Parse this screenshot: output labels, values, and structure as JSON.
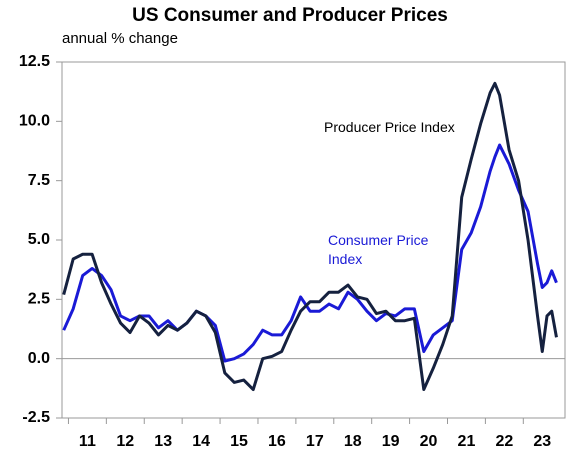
{
  "chart_data": {
    "type": "line",
    "title": "US Consumer and Producer Prices",
    "subtitle": "annual % change",
    "x": [
      10.875,
      11.125,
      11.375,
      11.625,
      11.875,
      12.125,
      12.375,
      12.625,
      12.875,
      13.125,
      13.375,
      13.625,
      13.875,
      14.125,
      14.375,
      14.625,
      14.875,
      15.125,
      15.375,
      15.625,
      15.875,
      16.125,
      16.375,
      16.625,
      16.875,
      17.125,
      17.375,
      17.625,
      17.875,
      18.125,
      18.375,
      18.625,
      18.875,
      19.125,
      19.375,
      19.625,
      19.875,
      20.125,
      20.375,
      20.625,
      20.875,
      21.125,
      21.375,
      21.625,
      21.875,
      22.125,
      22.25,
      22.375,
      22.625,
      22.875,
      23.125,
      23.375,
      23.5,
      23.625,
      23.75,
      23.875
    ],
    "series": [
      {
        "name": "Producer Price Index",
        "color": "#15213f",
        "values": [
          2.7,
          4.2,
          4.4,
          4.4,
          3.2,
          2.3,
          1.5,
          1.1,
          1.8,
          1.5,
          1.0,
          1.4,
          1.2,
          1.5,
          2.0,
          1.8,
          1.1,
          -0.6,
          -1.0,
          -0.9,
          -1.3,
          0.0,
          0.1,
          0.3,
          1.2,
          2.0,
          2.4,
          2.4,
          2.8,
          2.8,
          3.1,
          2.6,
          2.5,
          1.9,
          2.0,
          1.6,
          1.6,
          1.7,
          -1.3,
          -0.4,
          0.6,
          1.8,
          6.8,
          8.4,
          9.9,
          11.2,
          11.6,
          11.1,
          8.8,
          7.5,
          5.0,
          1.8,
          0.3,
          1.8,
          2.0,
          0.9
        ]
      },
      {
        "name": "Consumer Price Index",
        "color": "#1a1ad6",
        "values": [
          1.2,
          2.1,
          3.5,
          3.8,
          3.5,
          2.9,
          1.8,
          1.6,
          1.8,
          1.8,
          1.3,
          1.6,
          1.2,
          1.5,
          2.0,
          1.8,
          1.4,
          -0.1,
          0.0,
          0.2,
          0.6,
          1.2,
          1.0,
          1.0,
          1.6,
          2.6,
          2.0,
          2.0,
          2.3,
          2.1,
          2.8,
          2.5,
          2.0,
          1.6,
          1.9,
          1.8,
          2.1,
          2.1,
          0.3,
          1.0,
          1.3,
          1.6,
          4.6,
          5.3,
          6.4,
          7.9,
          8.5,
          9.0,
          8.2,
          7.1,
          6.2,
          4.0,
          3.0,
          3.2,
          3.7,
          3.2
        ]
      }
    ],
    "xlim": [
      10.83,
      24.1
    ],
    "xticks": [
      11,
      12,
      13,
      14,
      15,
      16,
      17,
      18,
      19,
      20,
      21,
      22,
      23
    ],
    "ylim": [
      -2.5,
      12.5
    ],
    "yticks": [
      {
        "value": -2.5,
        "label": "-2.5"
      },
      {
        "value": 0,
        "label": "0.0"
      },
      {
        "value": 2.5,
        "label": "2.5"
      },
      {
        "value": 5,
        "label": "5.0"
      },
      {
        "value": 7.5,
        "label": "7.5"
      },
      {
        "value": 10,
        "label": "10.0"
      },
      {
        "value": 12.5,
        "label": "12.5"
      }
    ]
  }
}
